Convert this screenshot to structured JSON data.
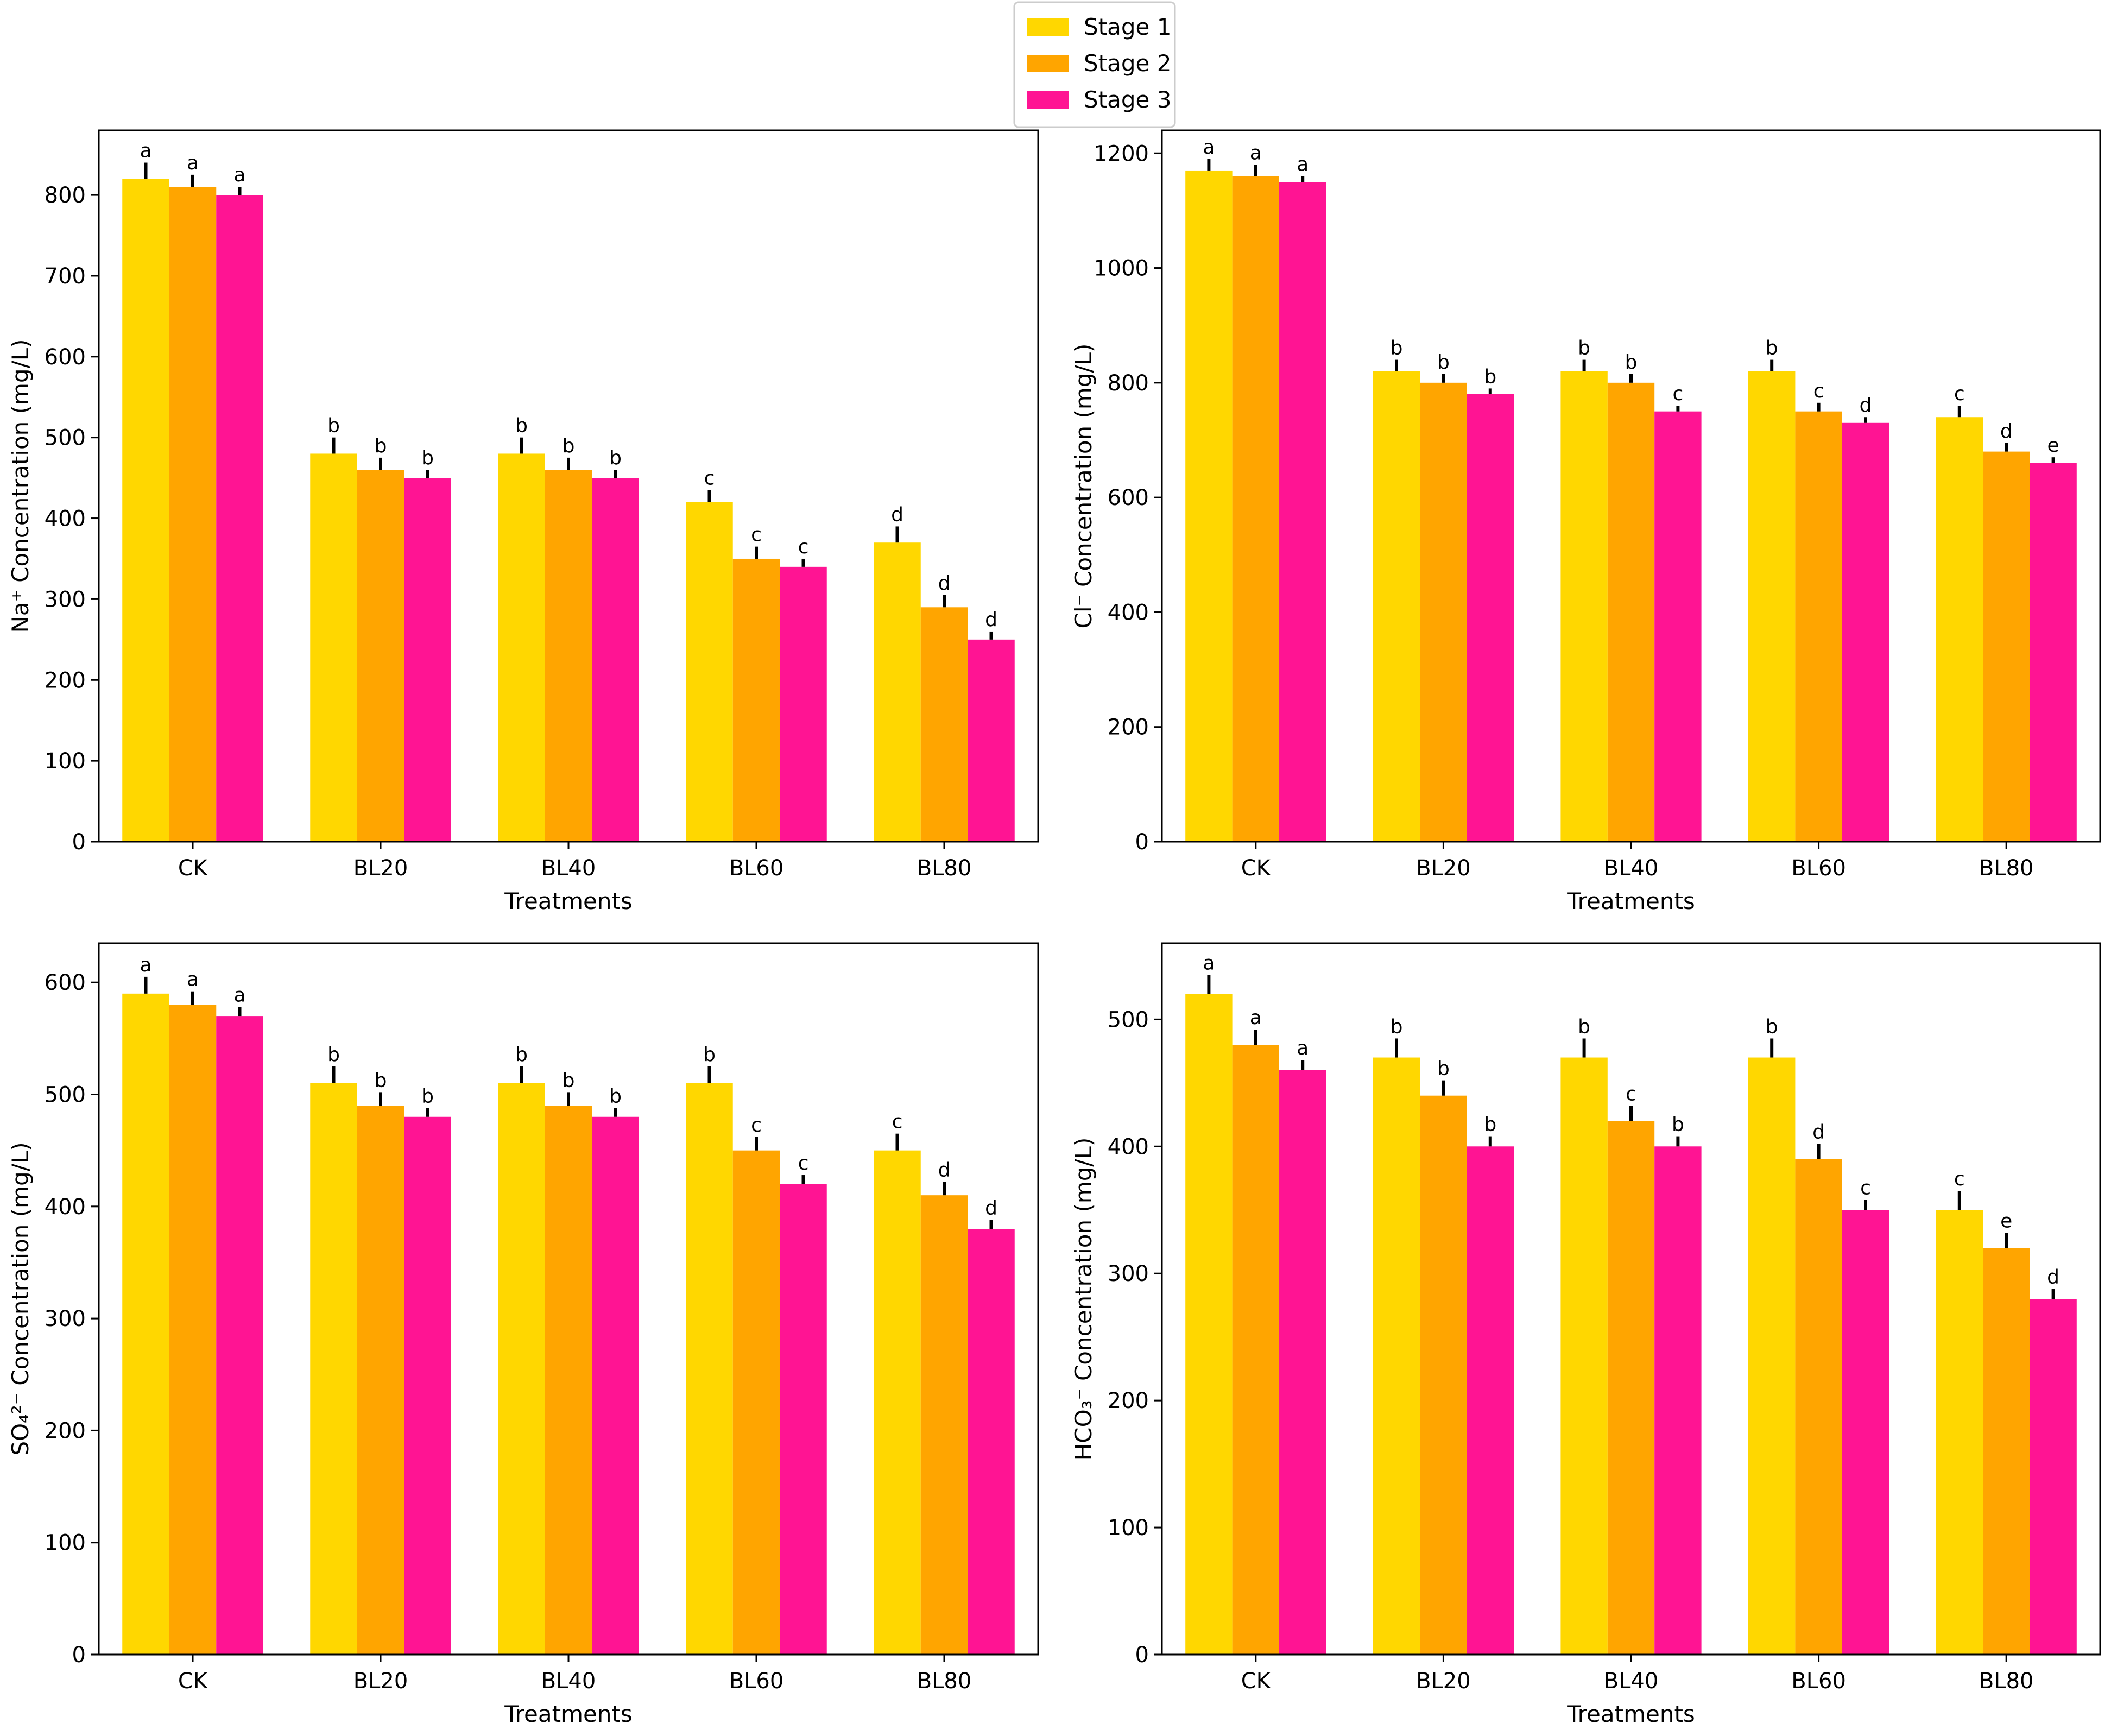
{
  "legend": {
    "placement": "top-center",
    "entries": [
      {
        "name": "Stage 1",
        "color": "#FFD700"
      },
      {
        "name": "Stage 2",
        "color": "#FFA500"
      },
      {
        "name": "Stage 3",
        "color": "#FF1493"
      }
    ]
  },
  "chart_data": [
    {
      "type": "bar",
      "title": "",
      "xlabel": "Treatments",
      "ylabel": "Na⁺ Concentration (mg/L)",
      "ylim": [
        0,
        880
      ],
      "yticks": [
        0,
        100,
        200,
        300,
        400,
        500,
        600,
        700,
        800
      ],
      "categories": [
        "CK",
        "BL20",
        "BL40",
        "BL60",
        "BL80"
      ],
      "series": [
        {
          "name": "Stage 1",
          "values": [
            820,
            480,
            480,
            420,
            370
          ],
          "errors": [
            20,
            20,
            20,
            15,
            20
          ],
          "labels": [
            "a",
            "b",
            "b",
            "c",
            "d"
          ]
        },
        {
          "name": "Stage 2",
          "values": [
            810,
            460,
            460,
            350,
            290
          ],
          "errors": [
            15,
            15,
            15,
            15,
            15
          ],
          "labels": [
            "a",
            "b",
            "b",
            "c",
            "d"
          ]
        },
        {
          "name": "Stage 3",
          "values": [
            800,
            450,
            450,
            340,
            250
          ],
          "errors": [
            10,
            10,
            10,
            10,
            10
          ],
          "labels": [
            "a",
            "b",
            "b",
            "c",
            "d"
          ]
        }
      ]
    },
    {
      "type": "bar",
      "title": "",
      "xlabel": "Treatments",
      "ylabel": "Cl⁻ Concentration (mg/L)",
      "ylim": [
        0,
        1240
      ],
      "yticks": [
        0,
        200,
        400,
        600,
        800,
        1000,
        1200
      ],
      "categories": [
        "CK",
        "BL20",
        "BL40",
        "BL60",
        "BL80"
      ],
      "series": [
        {
          "name": "Stage 1",
          "values": [
            1170,
            820,
            820,
            820,
            740
          ],
          "errors": [
            20,
            20,
            20,
            20,
            20
          ],
          "labels": [
            "a",
            "b",
            "b",
            "b",
            "c"
          ]
        },
        {
          "name": "Stage 2",
          "values": [
            1160,
            800,
            800,
            750,
            680
          ],
          "errors": [
            20,
            15,
            15,
            15,
            15
          ],
          "labels": [
            "a",
            "b",
            "b",
            "c",
            "d"
          ]
        },
        {
          "name": "Stage 3",
          "values": [
            1150,
            780,
            750,
            730,
            660
          ],
          "errors": [
            10,
            10,
            10,
            10,
            10
          ],
          "labels": [
            "a",
            "b",
            "c",
            "d",
            "e"
          ]
        }
      ]
    },
    {
      "type": "bar",
      "title": "",
      "xlabel": "Treatments",
      "ylabel": "SO₄²⁻ Concentration (mg/L)",
      "ylim": [
        0,
        635
      ],
      "yticks": [
        0,
        100,
        200,
        300,
        400,
        500,
        600
      ],
      "categories": [
        "CK",
        "BL20",
        "BL40",
        "BL60",
        "BL80"
      ],
      "series": [
        {
          "name": "Stage 1",
          "values": [
            590,
            510,
            510,
            510,
            450
          ],
          "errors": [
            15,
            15,
            15,
            15,
            15
          ],
          "labels": [
            "a",
            "b",
            "b",
            "b",
            "c"
          ]
        },
        {
          "name": "Stage 2",
          "values": [
            580,
            490,
            490,
            450,
            410
          ],
          "errors": [
            12,
            12,
            12,
            12,
            12
          ],
          "labels": [
            "a",
            "b",
            "b",
            "c",
            "d"
          ]
        },
        {
          "name": "Stage 3",
          "values": [
            570,
            480,
            480,
            420,
            380
          ],
          "errors": [
            8,
            8,
            8,
            8,
            8
          ],
          "labels": [
            "a",
            "b",
            "b",
            "c",
            "d"
          ]
        }
      ]
    },
    {
      "type": "bar",
      "title": "",
      "xlabel": "Treatments",
      "ylabel": "HCO₃⁻ Concentration (mg/L)",
      "ylim": [
        0,
        560
      ],
      "yticks": [
        0,
        100,
        200,
        300,
        400,
        500
      ],
      "categories": [
        "CK",
        "BL20",
        "BL40",
        "BL60",
        "BL80"
      ],
      "series": [
        {
          "name": "Stage 1",
          "values": [
            520,
            470,
            470,
            470,
            350
          ],
          "errors": [
            15,
            15,
            15,
            15,
            15
          ],
          "labels": [
            "a",
            "b",
            "b",
            "b",
            "c"
          ]
        },
        {
          "name": "Stage 2",
          "values": [
            480,
            440,
            420,
            390,
            320
          ],
          "errors": [
            12,
            12,
            12,
            12,
            12
          ],
          "labels": [
            "a",
            "b",
            "c",
            "d",
            "e"
          ]
        },
        {
          "name": "Stage 3",
          "values": [
            460,
            400,
            400,
            350,
            280
          ],
          "errors": [
            8,
            8,
            8,
            8,
            8
          ],
          "labels": [
            "a",
            "b",
            "b",
            "c",
            "d"
          ]
        }
      ]
    }
  ]
}
